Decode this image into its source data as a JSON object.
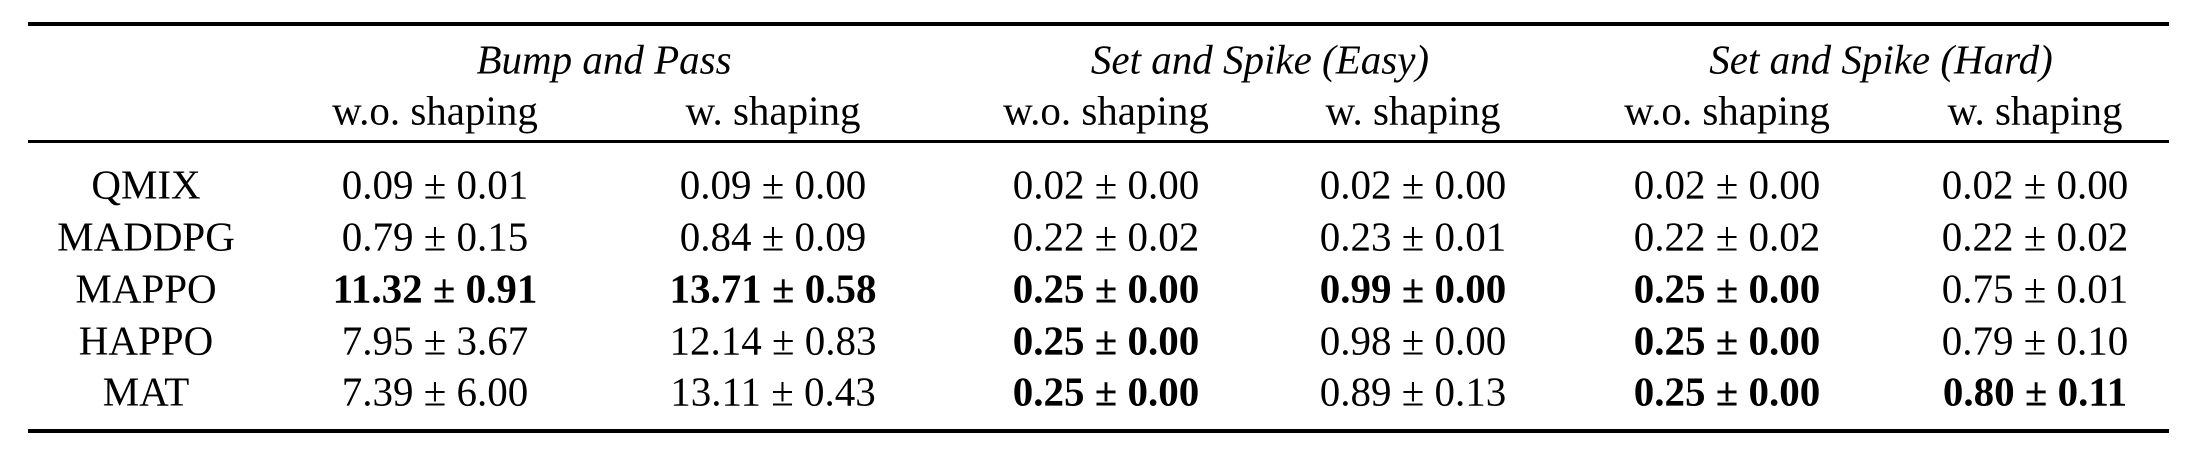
{
  "table": {
    "groups": [
      "Bump and Pass",
      "Set and Spike (Easy)",
      "Set and Spike (Hard)"
    ],
    "subheaders": [
      "w.o. shaping",
      "w. shaping",
      "w.o. shaping",
      "w. shaping",
      "w.o. shaping",
      "w. shaping"
    ],
    "rows": [
      {
        "method": "QMIX",
        "cells": [
          {
            "v": "0.09 ± 0.01",
            "bold": false
          },
          {
            "v": "0.09 ± 0.00",
            "bold": false
          },
          {
            "v": "0.02 ± 0.00",
            "bold": false
          },
          {
            "v": "0.02 ± 0.00",
            "bold": false
          },
          {
            "v": "0.02 ± 0.00",
            "bold": false
          },
          {
            "v": "0.02 ± 0.00",
            "bold": false
          }
        ]
      },
      {
        "method": "MADDPG",
        "cells": [
          {
            "v": "0.79 ± 0.15",
            "bold": false
          },
          {
            "v": "0.84 ± 0.09",
            "bold": false
          },
          {
            "v": "0.22 ± 0.02",
            "bold": false
          },
          {
            "v": "0.23 ± 0.01",
            "bold": false
          },
          {
            "v": "0.22 ± 0.02",
            "bold": false
          },
          {
            "v": "0.22 ± 0.02",
            "bold": false
          }
        ]
      },
      {
        "method": "MAPPO",
        "cells": [
          {
            "v": "11.32 ± 0.91",
            "bold": true
          },
          {
            "v": "13.71 ± 0.58",
            "bold": true
          },
          {
            "v": "0.25 ± 0.00",
            "bold": true
          },
          {
            "v": "0.99 ± 0.00",
            "bold": true
          },
          {
            "v": "0.25 ± 0.00",
            "bold": true
          },
          {
            "v": "0.75 ± 0.01",
            "bold": false
          }
        ]
      },
      {
        "method": "HAPPO",
        "cells": [
          {
            "v": "7.95 ± 3.67",
            "bold": false
          },
          {
            "v": "12.14 ± 0.83",
            "bold": false
          },
          {
            "v": "0.25 ± 0.00",
            "bold": true
          },
          {
            "v": "0.98 ± 0.00",
            "bold": false
          },
          {
            "v": "0.25 ± 0.00",
            "bold": true
          },
          {
            "v": "0.79 ± 0.10",
            "bold": false
          }
        ]
      },
      {
        "method": "MAT",
        "cells": [
          {
            "v": "7.39 ± 6.00",
            "bold": false
          },
          {
            "v": "13.11 ± 0.43",
            "bold": false
          },
          {
            "v": "0.25 ± 0.00",
            "bold": true
          },
          {
            "v": "0.89 ± 0.13",
            "bold": false
          },
          {
            "v": "0.25 ± 0.00",
            "bold": true
          },
          {
            "v": "0.80 ± 0.11",
            "bold": true
          }
        ]
      }
    ]
  }
}
